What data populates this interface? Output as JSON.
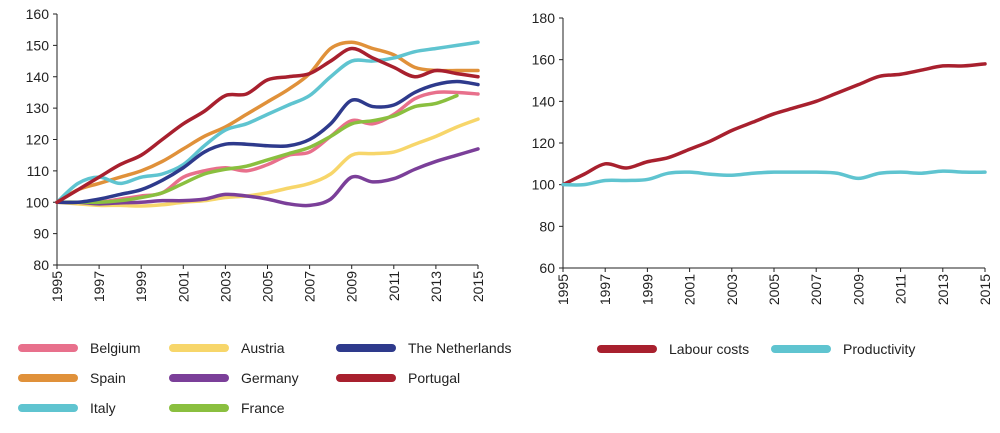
{
  "chart_data": [
    {
      "type": "line",
      "title": "",
      "xlabel": "",
      "ylabel": "",
      "ylim": [
        80,
        160
      ],
      "yticks": [
        80,
        90,
        100,
        110,
        120,
        130,
        140,
        150,
        160
      ],
      "xlim": [
        1995,
        2015
      ],
      "xticks": [
        "1995",
        "1997",
        "1999",
        "2001",
        "2003",
        "2005",
        "2007",
        "2009",
        "2011",
        "2013",
        "2015"
      ],
      "grid": false,
      "legend_position": "bottom",
      "series": [
        {
          "name": "Belgium",
          "color": "#e8708c",
          "x": [
            1995,
            1996,
            1997,
            1998,
            1999,
            2000,
            2001,
            2002,
            2003,
            2004,
            2005,
            2006,
            2007,
            2008,
            2009,
            2010,
            2011,
            2012,
            2013,
            2014,
            2015
          ],
          "y": [
            100,
            100,
            100,
            101,
            102,
            103,
            108,
            110,
            111,
            110,
            112,
            115,
            116,
            121,
            126,
            125,
            128,
            133,
            135,
            135,
            134.5
          ]
        },
        {
          "name": "Spain",
          "color": "#e0913a",
          "x": [
            1995,
            1996,
            1997,
            1998,
            1999,
            2000,
            2001,
            2002,
            2003,
            2004,
            2005,
            2006,
            2007,
            2008,
            2009,
            2010,
            2011,
            2012,
            2013,
            2014,
            2015
          ],
          "y": [
            100,
            104,
            106,
            108,
            110,
            113,
            117,
            121,
            124,
            128,
            132,
            136,
            141,
            149,
            151,
            149,
            147,
            143,
            142,
            142,
            142
          ]
        },
        {
          "name": "Italy",
          "color": "#5fc4d0",
          "x": [
            1995,
            1996,
            1997,
            1998,
            1999,
            2000,
            2001,
            2002,
            2003,
            2004,
            2005,
            2006,
            2007,
            2008,
            2009,
            2010,
            2011,
            2012,
            2013,
            2014,
            2015
          ],
          "y": [
            100,
            106,
            108,
            106,
            108,
            109,
            112,
            118,
            123,
            125,
            128,
            131,
            134,
            140,
            145,
            145,
            146,
            148,
            149,
            150,
            151
          ]
        },
        {
          "name": "Austria",
          "color": "#f7d66a",
          "x": [
            1995,
            1996,
            1997,
            1998,
            1999,
            2000,
            2001,
            2002,
            2003,
            2004,
            2005,
            2006,
            2007,
            2008,
            2009,
            2010,
            2011,
            2012,
            2013,
            2014,
            2015
          ],
          "y": [
            100,
            99.5,
            99,
            99,
            98.8,
            99.2,
            100,
            100.5,
            101.5,
            102,
            103,
            104.5,
            106,
            109,
            115,
            115.5,
            116,
            118.5,
            121,
            124,
            126.5
          ]
        },
        {
          "name": "Germany",
          "color": "#7b3f99",
          "x": [
            1995,
            1996,
            1997,
            1998,
            1999,
            2000,
            2001,
            2002,
            2003,
            2004,
            2005,
            2006,
            2007,
            2008,
            2009,
            2010,
            2011,
            2012,
            2013,
            2014,
            2015
          ],
          "y": [
            100,
            100,
            99.5,
            99.8,
            100,
            100.5,
            100.5,
            101,
            102.5,
            102,
            101,
            99.5,
            99,
            101,
            108,
            106.5,
            107.5,
            110.5,
            113,
            115,
            117
          ]
        },
        {
          "name": "France",
          "color": "#8abf3f",
          "x": [
            1995,
            1996,
            1997,
            1998,
            1999,
            2000,
            2001,
            2002,
            2003,
            2004,
            2005,
            2006,
            2007,
            2008,
            2009,
            2010,
            2011,
            2012,
            2013,
            2014
          ],
          "y": [
            100,
            100,
            100,
            100.5,
            101.5,
            103,
            106,
            109,
            110.5,
            111.5,
            113.5,
            115.5,
            117.5,
            121,
            125,
            126,
            127.5,
            130.5,
            131.5,
            134
          ]
        },
        {
          "name": "The Netherlands",
          "color": "#2e3a8c",
          "x": [
            1995,
            1996,
            1997,
            1998,
            1999,
            2000,
            2001,
            2002,
            2003,
            2004,
            2005,
            2006,
            2007,
            2008,
            2009,
            2010,
            2011,
            2012,
            2013,
            2014,
            2015
          ],
          "y": [
            100,
            100,
            101,
            102.5,
            104,
            107,
            111,
            116,
            118.5,
            118.5,
            118,
            118,
            120,
            125,
            132.5,
            130.5,
            131,
            135,
            137.5,
            138.5,
            137.5
          ]
        },
        {
          "name": "Portugal",
          "color": "#a8202e",
          "x": [
            1995,
            1996,
            1997,
            1998,
            1999,
            2000,
            2001,
            2002,
            2003,
            2004,
            2005,
            2006,
            2007,
            2008,
            2009,
            2010,
            2011,
            2012,
            2013,
            2014,
            2015
          ],
          "y": [
            100,
            104,
            108,
            112,
            115,
            120,
            125,
            129,
            134,
            134.5,
            139,
            140,
            141,
            145,
            149,
            146,
            143,
            140,
            142,
            141,
            140
          ]
        }
      ]
    },
    {
      "type": "line",
      "title": "",
      "xlabel": "",
      "ylabel": "",
      "ylim": [
        60,
        180
      ],
      "yticks": [
        60,
        80,
        100,
        120,
        140,
        160,
        180
      ],
      "xlim": [
        1995,
        2015
      ],
      "xticks": [
        "1995",
        "1997",
        "1999",
        "2001",
        "2003",
        "2005",
        "2007",
        "2009",
        "2011",
        "2013",
        "2015"
      ],
      "grid": false,
      "legend_position": "bottom",
      "series": [
        {
          "name": "Labour costs",
          "color": "#a8202e",
          "x": [
            1995,
            1996,
            1997,
            1998,
            1999,
            2000,
            2001,
            2002,
            2003,
            2004,
            2005,
            2006,
            2007,
            2008,
            2009,
            2010,
            2011,
            2012,
            2013,
            2014,
            2015
          ],
          "y": [
            100,
            105,
            110,
            108,
            111,
            113,
            117,
            121,
            126,
            130,
            134,
            137,
            140,
            144,
            148,
            152,
            153,
            155,
            157,
            157,
            158
          ]
        },
        {
          "name": "Productivity",
          "color": "#5fc4d0",
          "x": [
            1995,
            1996,
            1997,
            1998,
            1999,
            2000,
            2001,
            2002,
            2003,
            2004,
            2005,
            2006,
            2007,
            2008,
            2009,
            2010,
            2011,
            2012,
            2013,
            2014,
            2015
          ],
          "y": [
            100,
            100,
            102,
            102,
            102.5,
            105.5,
            106,
            105,
            104.5,
            105.5,
            106,
            106,
            106,
            105.5,
            103,
            105.5,
            106,
            105.5,
            106.5,
            106,
            106
          ]
        }
      ]
    }
  ]
}
